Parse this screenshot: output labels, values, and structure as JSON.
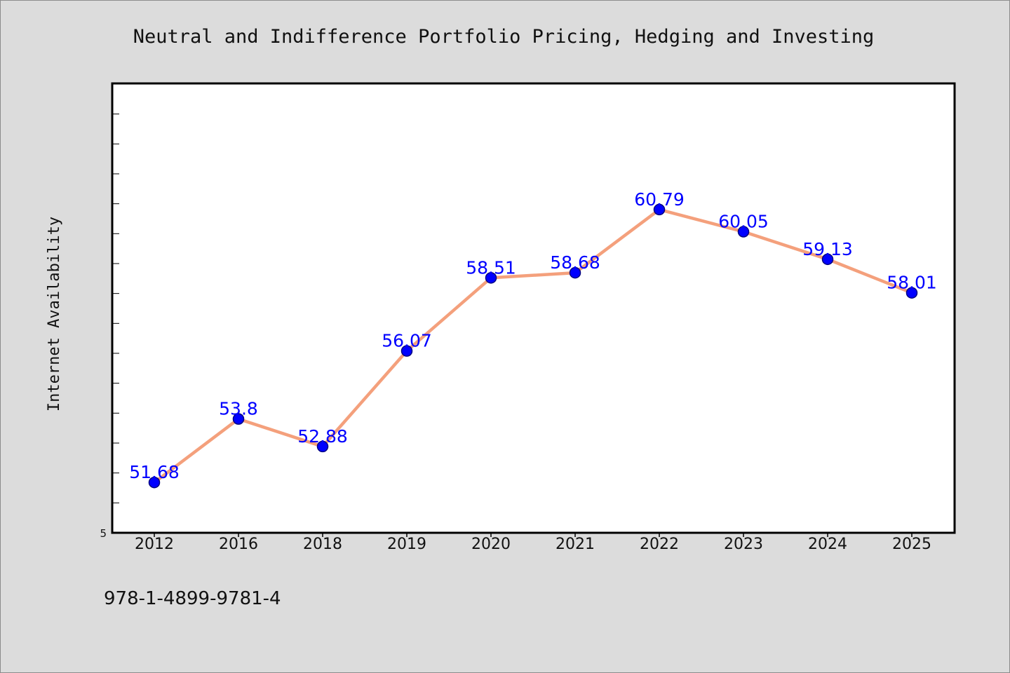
{
  "chart_data": {
    "type": "line",
    "title": "Neutral and Indifference Portfolio Pricing, Hedging and Investing",
    "xlabel": "",
    "ylabel": "Internet Availability",
    "categories": [
      "2012",
      "2016",
      "2018",
      "2019",
      "2020",
      "2021",
      "2022",
      "2023",
      "2024",
      "2025"
    ],
    "series": [
      {
        "values": [
          51.68,
          53.8,
          52.88,
          56.07,
          58.51,
          58.68,
          60.79,
          60.05,
          59.13,
          58.01
        ],
        "data_labels": [
          "51.68",
          "53.8",
          "52.88",
          "56.07",
          "58.51",
          "58.68",
          "60.79",
          "60.05",
          "59.13",
          "58.01"
        ]
      }
    ],
    "y_tick_labels": [
      "5"
    ],
    "ylim": [
      50,
      65
    ],
    "grid": false,
    "legend": "none",
    "colors": {
      "line": "#f4a07c",
      "marker": "#0000ff",
      "marker_outline": "#000080",
      "data_label": "#0000ff",
      "background": "#dcdcdc",
      "plot_background": "#ffffff"
    }
  },
  "footer": {
    "isbn": "978-1-4899-9781-4"
  }
}
